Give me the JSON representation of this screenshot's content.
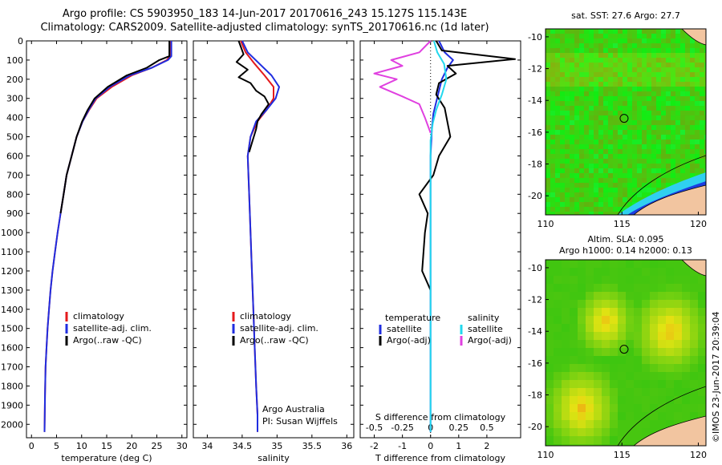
{
  "header": {
    "title_line1": "Argo profile: CS 5903950_183 14-Jun-2017 20170616_243 15.127S 115.143E",
    "title_line2": "Climatology: CARS2009. Satellite-adjusted climatology: synTS_20170616.nc (1d later)"
  },
  "footer": {
    "stamp": "©IMOS 23-Jun-2017 20:39:04"
  },
  "colors": {
    "climatology": "#e41a1c",
    "satellite": "#1f2de0",
    "argo": "#000000",
    "salinity_satellite": "#22d8ee",
    "salinity_argo": "#e040e0"
  },
  "chart_data": [
    {
      "type": "line",
      "id": "temperature",
      "xlabel": "temperature (deg C)",
      "ylabel": "",
      "xlim": [
        -1,
        31
      ],
      "ylim": [
        2070,
        0
      ],
      "xticks": [
        0,
        5,
        10,
        15,
        20,
        25,
        30
      ],
      "yticks": [
        0,
        100,
        200,
        300,
        400,
        500,
        600,
        700,
        800,
        900,
        1000,
        1100,
        1200,
        1300,
        1400,
        1500,
        1600,
        1700,
        1800,
        1900,
        2000
      ],
      "legend": [
        "climatology",
        "satellite-adj. clim.",
        "Argo(..raw -QC)"
      ],
      "legend_position": "lower-center",
      "series": [
        {
          "name": "climatology",
          "color_key": "climatology",
          "x": [
            27.6,
            27.6,
            27.0,
            24,
            20,
            16,
            13,
            11.5,
            10.2,
            9.0,
            8.0,
            7.0,
            6.4,
            5.8,
            5.2,
            4.7,
            4.2,
            3.8,
            3.5,
            3.2,
            3.0,
            2.8,
            2.7,
            2.6
          ],
          "y": [
            0,
            80,
            100,
            140,
            180,
            240,
            300,
            360,
            420,
            500,
            600,
            700,
            800,
            900,
            1000,
            1100,
            1200,
            1300,
            1400,
            1500,
            1600,
            1700,
            1850,
            2040
          ]
        },
        {
          "name": "satellite-adj. clim.",
          "color_key": "satellite",
          "x": [
            27.9,
            27.9,
            27.2,
            24,
            19.6,
            15.6,
            12.8,
            11.4,
            10.2,
            9.0,
            8.0,
            7.0,
            6.4,
            5.8,
            5.2,
            4.7,
            4.2,
            3.8,
            3.5,
            3.2,
            3.0,
            2.8,
            2.7,
            2.6
          ],
          "y": [
            0,
            80,
            100,
            140,
            180,
            240,
            300,
            360,
            420,
            500,
            600,
            700,
            800,
            900,
            1000,
            1100,
            1200,
            1300,
            1400,
            1500,
            1600,
            1700,
            1850,
            2040
          ]
        },
        {
          "name": "Argo(..raw -QC)",
          "color_key": "argo",
          "x": [
            27.5,
            27.5,
            25.5,
            23,
            19,
            15.2,
            12.6,
            11.2,
            10.1,
            9.0,
            8.0,
            7.0,
            6.4,
            5.8
          ],
          "y": [
            0,
            80,
            100,
            140,
            180,
            240,
            300,
            360,
            420,
            500,
            600,
            700,
            800,
            900
          ]
        }
      ]
    },
    {
      "type": "line",
      "id": "salinity",
      "xlabel": "salinity",
      "ylabel": "",
      "xlim": [
        33.8,
        36.1
      ],
      "ylim": [
        2070,
        0
      ],
      "xticks": [
        34,
        34.5,
        35,
        35.5,
        36
      ],
      "legend": [
        "climatology",
        "satellite-adj. clim.",
        "Argo(..raw -QC)"
      ],
      "legend_position": "lower-center",
      "annotations": [
        "Argo Australia",
        "PI: Susan Wijffels"
      ],
      "series": [
        {
          "name": "climatology",
          "color_key": "climatology",
          "x": [
            34.48,
            34.55,
            34.68,
            34.82,
            34.95,
            34.95,
            34.85,
            34.72,
            34.62,
            34.58,
            34.6,
            34.62,
            34.64,
            34.66,
            34.68,
            34.7,
            34.72,
            34.72
          ],
          "y": [
            0,
            60,
            120,
            180,
            240,
            300,
            360,
            420,
            500,
            600,
            800,
            1000,
            1200,
            1400,
            1600,
            1800,
            1950,
            2040
          ]
        },
        {
          "name": "satellite-adj. clim.",
          "color_key": "satellite",
          "x": [
            34.5,
            34.58,
            34.75,
            34.92,
            35.03,
            34.98,
            34.85,
            34.7,
            34.62,
            34.58,
            34.6,
            34.62,
            34.64,
            34.66,
            34.68,
            34.7,
            34.72,
            34.72
          ],
          "y": [
            0,
            60,
            120,
            180,
            240,
            300,
            360,
            420,
            500,
            600,
            800,
            1000,
            1200,
            1400,
            1600,
            1800,
            1950,
            2040
          ]
        },
        {
          "name": "Argo(..raw -QC)",
          "color_key": "argo",
          "x": [
            34.45,
            34.52,
            34.42,
            34.58,
            34.45,
            34.62,
            34.7,
            34.82,
            34.88,
            34.78,
            34.72,
            34.7,
            34.65,
            34.6
          ],
          "y": [
            0,
            70,
            110,
            150,
            190,
            220,
            260,
            290,
            330,
            380,
            420,
            460,
            520,
            580
          ]
        }
      ]
    },
    {
      "type": "line",
      "id": "difference",
      "xlabel": "T difference from climatology",
      "x2label": "S difference from climatology",
      "ylabel": "",
      "xlim": [
        -2.5,
        3.2
      ],
      "x2lim": [
        -0.625,
        0.8
      ],
      "ylim": [
        2070,
        0
      ],
      "xticks": [
        -2,
        -1,
        0,
        1,
        2
      ],
      "x2ticks": [
        -0.5,
        -0.25,
        0,
        0.25,
        0.5
      ],
      "legend": [
        "temperature",
        "satellite",
        "Argo(-adj)",
        "salinity",
        "satellite",
        "Argo(-adj)"
      ],
      "legend_position": "lower-center",
      "series": [
        {
          "name": "satellite",
          "group": "temperature",
          "color_key": "satellite",
          "x": [
            0.3,
            0.5,
            0.8,
            0.6,
            0.4,
            0.3,
            0.2,
            0.1,
            0.05,
            0,
            0,
            0,
            0
          ],
          "y": [
            0,
            60,
            100,
            140,
            200,
            260,
            320,
            380,
            450,
            600,
            1000,
            1500,
            2040
          ]
        },
        {
          "name": "Argo(-adj)",
          "group": "temperature",
          "color_key": "argo",
          "x": [
            0.2,
            0.4,
            3.0,
            0.6,
            0.9,
            0.3,
            0.2,
            0.5,
            0.7,
            0.3,
            0.1,
            -0.4,
            -0.1,
            -0.2,
            -0.3,
            0.0
          ],
          "y": [
            0,
            50,
            95,
            130,
            170,
            220,
            280,
            350,
            500,
            600,
            700,
            800,
            900,
            1000,
            1200,
            1300
          ]
        },
        {
          "name": "satellite",
          "group": "salinity",
          "color_key": "salinity_satellite",
          "x": [
            0.03,
            0.06,
            0.12,
            0.14,
            0.1,
            0.05,
            0.02,
            0,
            0,
            0,
            0
          ],
          "y": [
            0,
            60,
            120,
            200,
            280,
            360,
            430,
            520,
            800,
            1400,
            2040
          ]
        },
        {
          "name": "Argo(-adj)",
          "group": "salinity",
          "color_key": "salinity_argo",
          "x": [
            0.0,
            -0.1,
            -0.35,
            -0.25,
            -0.5,
            -0.3,
            -0.45,
            -0.25,
            -0.1,
            -0.05,
            0
          ],
          "y": [
            0,
            60,
            100,
            130,
            170,
            200,
            240,
            290,
            330,
            400,
            480
          ]
        }
      ]
    },
    {
      "type": "heatmap",
      "id": "sst-map",
      "title": "sat. SST: 27.6 Argo: 27.7",
      "xlim": [
        110,
        120.5
      ],
      "ylim": [
        -21.2,
        -9.5
      ],
      "xticks": [
        110,
        115,
        120
      ],
      "yticks": [
        -10,
        -12,
        -14,
        -16,
        -18,
        -20
      ],
      "marker": {
        "x": 115.143,
        "y": -15.127
      }
    },
    {
      "type": "heatmap",
      "id": "sla-map",
      "title_line1": "Altim. SLA: 0.095",
      "title_line2": "Argo h1000: 0.14 h2000: 0.13",
      "xlim": [
        110,
        120.5
      ],
      "ylim": [
        -21.2,
        -9.5
      ],
      "xticks": [
        110,
        115,
        120
      ],
      "yticks": [
        -10,
        -12,
        -14,
        -16,
        -18,
        -20
      ],
      "marker": {
        "x": 115.143,
        "y": -15.127
      }
    }
  ]
}
